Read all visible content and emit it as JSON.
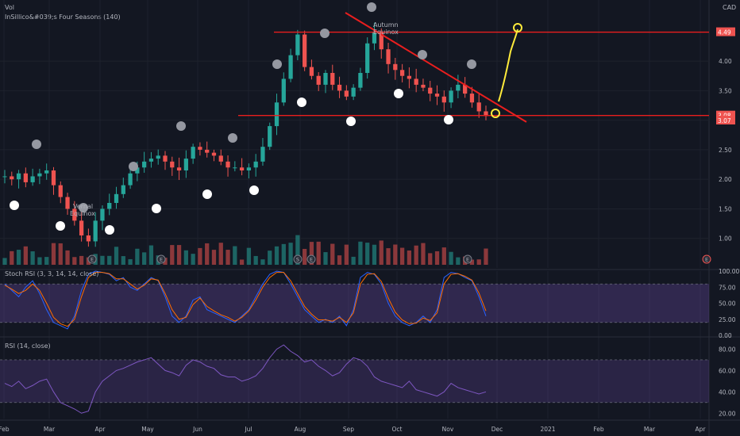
{
  "header": {
    "top_left": "Vol",
    "indicator_title": "InSillico&#039;s Four Seasons (140)",
    "currency": "CAD"
  },
  "colors": {
    "background": "#131722",
    "up": "#26a69a",
    "down": "#ef5350",
    "red_line": "#e91e1e",
    "yellow": "#ffeb3b",
    "rsi_band": "#7e57c2",
    "stoch_k": "#2962ff",
    "stoch_d": "#ff6d00"
  },
  "chart_data": [
    {
      "type": "candlestick",
      "title": "InSillico&#039;s Four Seasons (140)",
      "x_ticks": [
        "Feb",
        "Mar",
        "Apr",
        "May",
        "Jun",
        "Jul",
        "Aug",
        "Sep",
        "Oct",
        "Nov",
        "Dec",
        "2021",
        "Feb",
        "Mar",
        "Apr"
      ],
      "y_ticks": [
        "1.00",
        "1.50",
        "2.00",
        "2.50",
        "3.00",
        "3.50",
        "4.00"
      ],
      "ylim": [
        0.5,
        4.9
      ],
      "price_labels": {
        "resistance": "4.49",
        "support": "3.08",
        "last": "3.07"
      },
      "annotations": [
        {
          "text": "Vernal Equinox",
          "month": "Mar"
        },
        {
          "text": "Autumn Equinox",
          "month": "Sep"
        }
      ],
      "earnings_markers": [
        "E",
        "E",
        "S",
        "E",
        "E",
        "E"
      ],
      "horizontal_lines": [
        4.49,
        3.08
      ],
      "trend_line": {
        "from": [
          "Aug 25",
          4.82
        ],
        "to": [
          "Nov 30",
          2.97
        ]
      },
      "close_series": [
        2.05,
        2.0,
        2.1,
        1.95,
        2.05,
        2.1,
        2.15,
        1.9,
        1.7,
        1.5,
        1.3,
        1.05,
        0.95,
        1.3,
        1.5,
        1.6,
        1.75,
        1.9,
        2.1,
        2.2,
        2.3,
        2.35,
        2.4,
        2.3,
        2.2,
        2.15,
        2.35,
        2.55,
        2.5,
        2.45,
        2.4,
        2.3,
        2.2,
        2.2,
        2.15,
        2.2,
        2.3,
        2.55,
        2.9,
        3.3,
        3.7,
        4.1,
        4.45,
        3.9,
        3.75,
        3.6,
        3.8,
        3.6,
        3.5,
        3.4,
        3.55,
        3.8,
        4.3,
        4.49,
        4.2,
        3.95,
        3.85,
        3.75,
        3.7,
        3.6,
        3.55,
        3.45,
        3.4,
        3.3,
        3.5,
        3.6,
        3.45,
        3.3,
        3.15,
        3.07
      ]
    },
    {
      "type": "line",
      "title": "Stoch RSI (3, 3, 14, 14, close)",
      "y_ticks": [
        "100.00",
        "75.00",
        "50.00",
        "25.00",
        "0.00"
      ],
      "ylim": [
        0,
        100
      ],
      "band": [
        20,
        80
      ],
      "series": [
        {
          "name": "K",
          "values": [
            80,
            70,
            60,
            75,
            85,
            65,
            40,
            20,
            15,
            10,
            30,
            70,
            95,
            100,
            98,
            95,
            85,
            90,
            75,
            70,
            80,
            90,
            85,
            60,
            30,
            20,
            30,
            55,
            60,
            40,
            35,
            30,
            25,
            20,
            30,
            40,
            60,
            80,
            95,
            100,
            98,
            80,
            60,
            40,
            30,
            20,
            25,
            20,
            30,
            15,
            40,
            90,
            98,
            95,
            80,
            50,
            30,
            20,
            15,
            20,
            30,
            20,
            40,
            90,
            98,
            96,
            90,
            85,
            60,
            30
          ]
        },
        {
          "name": "D",
          "values": [
            78,
            72,
            65,
            70,
            80,
            70,
            50,
            28,
            18,
            14,
            25,
            60,
            90,
            98,
            98,
            96,
            88,
            88,
            80,
            72,
            78,
            88,
            86,
            65,
            40,
            25,
            28,
            48,
            58,
            45,
            38,
            32,
            28,
            22,
            28,
            38,
            55,
            75,
            90,
            98,
            98,
            85,
            65,
            45,
            33,
            24,
            24,
            22,
            28,
            20,
            35,
            80,
            95,
            96,
            84,
            58,
            36,
            24,
            18,
            19,
            27,
            23,
            35,
            80,
            95,
            96,
            92,
            86,
            66,
            38
          ]
        }
      ]
    },
    {
      "type": "line",
      "title": "RSI (14, close)",
      "y_ticks": [
        "80.00",
        "60.00",
        "40.00",
        "20.00"
      ],
      "ylim": [
        15,
        90
      ],
      "band": [
        30,
        70
      ],
      "series": [
        {
          "name": "RSI",
          "values": [
            48,
            45,
            50,
            43,
            46,
            50,
            52,
            40,
            30,
            27,
            24,
            20,
            22,
            40,
            50,
            55,
            60,
            62,
            65,
            68,
            70,
            72,
            66,
            60,
            58,
            55,
            65,
            70,
            68,
            64,
            62,
            56,
            54,
            54,
            50,
            52,
            55,
            62,
            72,
            80,
            84,
            78,
            74,
            68,
            70,
            64,
            60,
            55,
            58,
            66,
            72,
            70,
            64,
            54,
            50,
            48,
            46,
            44,
            50,
            42,
            40,
            38,
            36,
            40,
            48,
            44,
            42,
            40,
            38,
            40
          ]
        }
      ]
    }
  ]
}
